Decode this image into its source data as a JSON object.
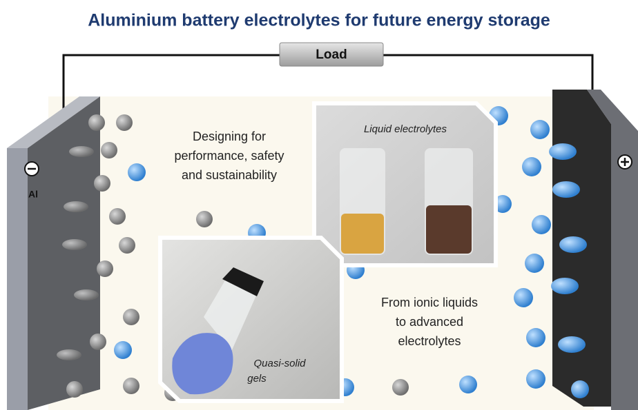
{
  "title": "Aluminium battery electrolytes for future energy storage",
  "load": "Load",
  "anode_label": "Al",
  "design_text": [
    "Designing for",
    "performance, safety",
    "and sustainability"
  ],
  "liquid_caption": "Liquid electrolytes",
  "gel_caption": [
    "Quasi-solid",
    "gels"
  ],
  "ionic_text": [
    "From ionic liquids",
    "to advanced",
    "electrolytes"
  ]
}
